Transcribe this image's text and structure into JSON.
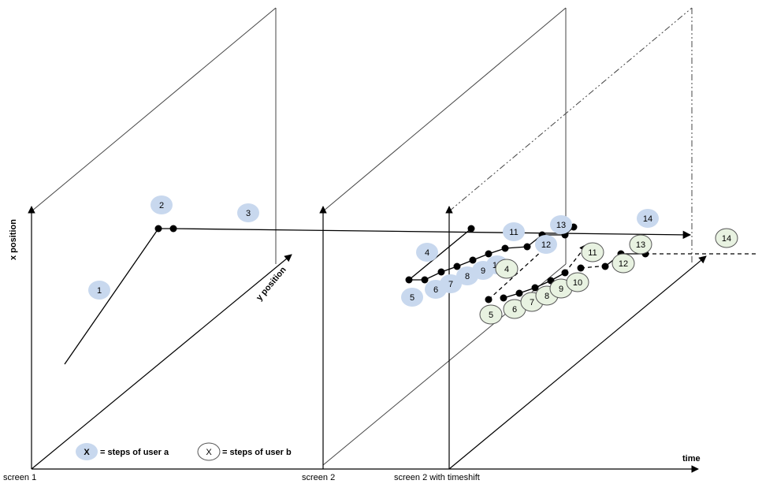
{
  "axes": {
    "x_position": "x position",
    "y_position": "y position",
    "time": "time"
  },
  "screens": {
    "screen1": "screen 1",
    "screen2": "screen 2",
    "screen2_timeshift": "screen 2 with timeshift"
  },
  "legend": {
    "user_a_symbol": "X",
    "user_a_text": "= steps of user a",
    "user_b_symbol": "X",
    "user_b_text": "= steps of user b"
  },
  "steps_user_a": [
    "1",
    "2",
    "3",
    "4",
    "5",
    "6",
    "7",
    "8",
    "9",
    "10",
    "11",
    "12",
    "13",
    "14"
  ],
  "steps_user_b": [
    "4",
    "5",
    "6",
    "7",
    "8",
    "9",
    "10",
    "11",
    "12",
    "13",
    "14"
  ],
  "colors": {
    "user_a_fill": "#c8d8ee",
    "user_b_fill": "#e8f2e1",
    "user_b_stroke": "#555555",
    "line": "#000000"
  }
}
